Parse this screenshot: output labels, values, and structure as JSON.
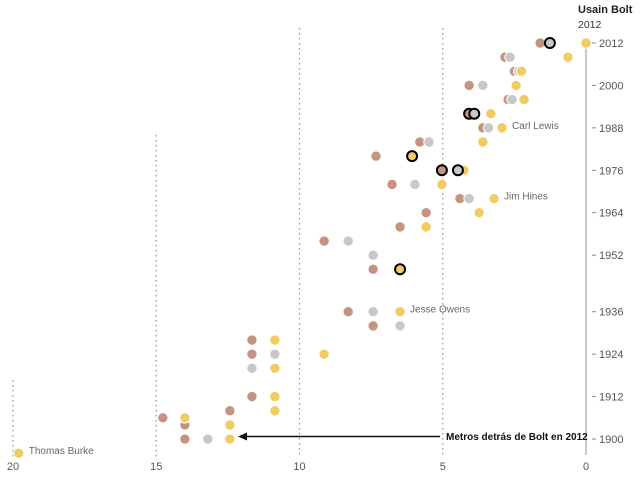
{
  "chart_data": {
    "type": "scatter",
    "header": {
      "name": "Usain Bolt",
      "year": "2012"
    },
    "annotation": "Metros detrás de Bolt en 2012",
    "xlim": [
      20,
      0
    ],
    "x_ticks": [
      20,
      15,
      10,
      5,
      0
    ],
    "y_ticks": [
      2012,
      2000,
      1988,
      1976,
      1964,
      1952,
      1936,
      1924,
      1912,
      1900
    ],
    "grid": "dotted vertical at x = 5, 10, 15, 20",
    "colors": {
      "gold": "#f0cc62",
      "silver": "#c8c8c8",
      "bronze": "#c49480",
      "highlight_stroke": "#000000"
    },
    "labels": [
      {
        "text": "Carl Lewis",
        "year": 1988,
        "x": 2.93
      },
      {
        "text": "Jim Hines",
        "year": 1968,
        "x": 3.21
      },
      {
        "text": "Jesse Owens",
        "year": 1936,
        "x": 6.49
      },
      {
        "text": "Thomas Burke",
        "year": 1896,
        "x": 19.8
      }
    ],
    "points": [
      {
        "year": 2012,
        "medal": "bronze",
        "x": 1.6
      },
      {
        "year": 2012,
        "medal": "silver",
        "x": 1.26,
        "outlined": true
      },
      {
        "year": 2012,
        "medal": "gold",
        "x": 0
      },
      {
        "year": 2008,
        "medal": "bronze",
        "x": 2.83
      },
      {
        "year": 2008,
        "medal": "silver",
        "x": 2.65
      },
      {
        "year": 2008,
        "medal": "gold",
        "x": 0.63
      },
      {
        "year": 2004,
        "medal": "bronze",
        "x": 2.5
      },
      {
        "year": 2004,
        "medal": "silver",
        "x": 2.35
      },
      {
        "year": 2004,
        "medal": "gold",
        "x": 2.25
      },
      {
        "year": 2000,
        "medal": "bronze",
        "x": 4.08
      },
      {
        "year": 2000,
        "medal": "silver",
        "x": 3.6
      },
      {
        "year": 2000,
        "medal": "gold",
        "x": 2.44
      },
      {
        "year": 1996,
        "medal": "bronze",
        "x": 2.72
      },
      {
        "year": 1996,
        "medal": "silver",
        "x": 2.58
      },
      {
        "year": 1996,
        "medal": "gold",
        "x": 2.16
      },
      {
        "year": 1992,
        "medal": "bronze",
        "x": 4.08,
        "outlined": true
      },
      {
        "year": 1992,
        "medal": "silver",
        "x": 3.9,
        "outlined": true
      },
      {
        "year": 1992,
        "medal": "gold",
        "x": 3.32
      },
      {
        "year": 1988,
        "medal": "bronze",
        "x": 3.6
      },
      {
        "year": 1988,
        "medal": "silver",
        "x": 3.4
      },
      {
        "year": 1988,
        "medal": "gold",
        "x": 2.93
      },
      {
        "year": 1984,
        "medal": "bronze",
        "x": 5.8
      },
      {
        "year": 1984,
        "medal": "silver",
        "x": 5.48
      },
      {
        "year": 1984,
        "medal": "gold",
        "x": 3.6
      },
      {
        "year": 1980,
        "medal": "bronze",
        "x": 7.33
      },
      {
        "year": 1980,
        "medal": "gold",
        "x": 6.07,
        "outlined": true
      },
      {
        "year": 1976,
        "medal": "gold",
        "x": 4.26
      },
      {
        "year": 1976,
        "medal": "bronze",
        "x": 5.03,
        "outlined": true
      },
      {
        "year": 1976,
        "medal": "silver",
        "x": 4.47,
        "outlined": true
      },
      {
        "year": 1972,
        "medal": "bronze",
        "x": 6.77
      },
      {
        "year": 1972,
        "medal": "silver",
        "x": 5.97
      },
      {
        "year": 1972,
        "medal": "gold",
        "x": 5.03
      },
      {
        "year": 1968,
        "medal": "bronze",
        "x": 4.4
      },
      {
        "year": 1968,
        "medal": "silver",
        "x": 4.08
      },
      {
        "year": 1968,
        "medal": "gold",
        "x": 3.21
      },
      {
        "year": 1964,
        "medal": "bronze",
        "x": 5.58
      },
      {
        "year": 1964,
        "medal": "gold",
        "x": 3.73
      },
      {
        "year": 1960,
        "medal": "bronze",
        "x": 6.49
      },
      {
        "year": 1960,
        "medal": "gold",
        "x": 5.58
      },
      {
        "year": 1956,
        "medal": "bronze",
        "x": 9.14
      },
      {
        "year": 1956,
        "medal": "silver",
        "x": 8.3
      },
      {
        "year": 1952,
        "medal": "silver",
        "x": 7.43
      },
      {
        "year": 1948,
        "medal": "bronze",
        "x": 7.43
      },
      {
        "year": 1948,
        "medal": "gold",
        "x": 6.49,
        "outlined": true
      },
      {
        "year": 1936,
        "medal": "bronze",
        "x": 8.3
      },
      {
        "year": 1936,
        "medal": "silver",
        "x": 7.43
      },
      {
        "year": 1936,
        "medal": "gold",
        "x": 6.49
      },
      {
        "year": 1932,
        "medal": "bronze",
        "x": 7.43
      },
      {
        "year": 1932,
        "medal": "silver",
        "x": 6.49
      },
      {
        "year": 1928,
        "medal": "bronze",
        "x": 11.66
      },
      {
        "year": 1928,
        "medal": "gold",
        "x": 10.86
      },
      {
        "year": 1924,
        "medal": "bronze",
        "x": 11.66
      },
      {
        "year": 1924,
        "medal": "silver",
        "x": 10.86
      },
      {
        "year": 1924,
        "medal": "gold",
        "x": 9.14
      },
      {
        "year": 1920,
        "medal": "silver",
        "x": 11.66
      },
      {
        "year": 1920,
        "medal": "gold",
        "x": 10.86
      },
      {
        "year": 1912,
        "medal": "bronze",
        "x": 11.66
      },
      {
        "year": 1912,
        "medal": "gold",
        "x": 10.86
      },
      {
        "year": 1908,
        "medal": "bronze",
        "x": 12.43
      },
      {
        "year": 1908,
        "medal": "gold",
        "x": 10.86
      },
      {
        "year": 1906,
        "medal": "bronze",
        "x": 14.77
      },
      {
        "year": 1906,
        "medal": "gold",
        "x": 14.0
      },
      {
        "year": 1904,
        "medal": "bronze",
        "x": 14.0
      },
      {
        "year": 1904,
        "medal": "gold",
        "x": 12.43
      },
      {
        "year": 1900,
        "medal": "bronze",
        "x": 14.0
      },
      {
        "year": 1900,
        "medal": "silver",
        "x": 13.2
      },
      {
        "year": 1900,
        "medal": "gold",
        "x": 12.43
      },
      {
        "year": 1896,
        "medal": "gold",
        "x": 19.8
      }
    ]
  }
}
